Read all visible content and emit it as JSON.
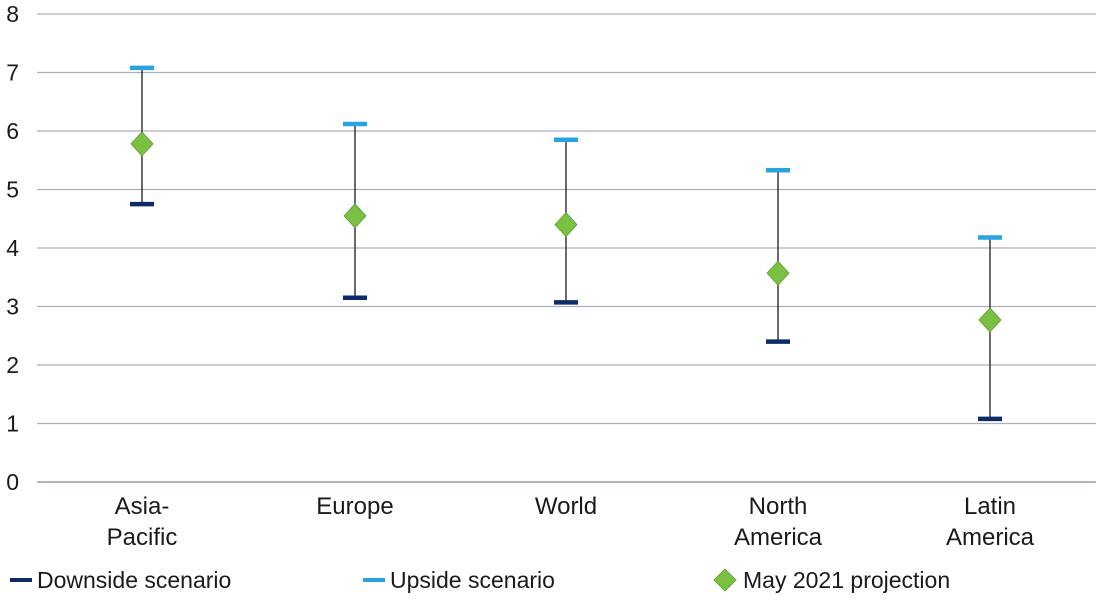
{
  "chart_data": {
    "type": "errorbar",
    "title": "",
    "xlabel": "",
    "ylabel": "",
    "ylim": [
      0,
      8
    ],
    "yticks": [
      0,
      1,
      2,
      3,
      4,
      5,
      6,
      7,
      8
    ],
    "grid": true,
    "legend_position": "bottom",
    "categories": [
      {
        "lines": [
          "Asia-",
          "Pacific"
        ]
      },
      {
        "lines": [
          "Europe"
        ]
      },
      {
        "lines": [
          "World"
        ]
      },
      {
        "lines": [
          "North",
          "America"
        ]
      },
      {
        "lines": [
          "Latin",
          "America"
        ]
      }
    ],
    "series": [
      {
        "name": "Downside scenario",
        "marker": "dash",
        "color": "#0d2b6b",
        "values": [
          4.75,
          3.15,
          3.07,
          2.4,
          1.08
        ]
      },
      {
        "name": "Upside scenario",
        "marker": "dash",
        "color": "#27a4e0",
        "values": [
          7.08,
          6.12,
          5.85,
          5.33,
          4.18
        ]
      },
      {
        "name": "May 2021 projection",
        "marker": "diamond",
        "color": "#7ac143",
        "values": [
          5.78,
          4.55,
          4.4,
          3.57,
          2.77
        ]
      }
    ]
  }
}
